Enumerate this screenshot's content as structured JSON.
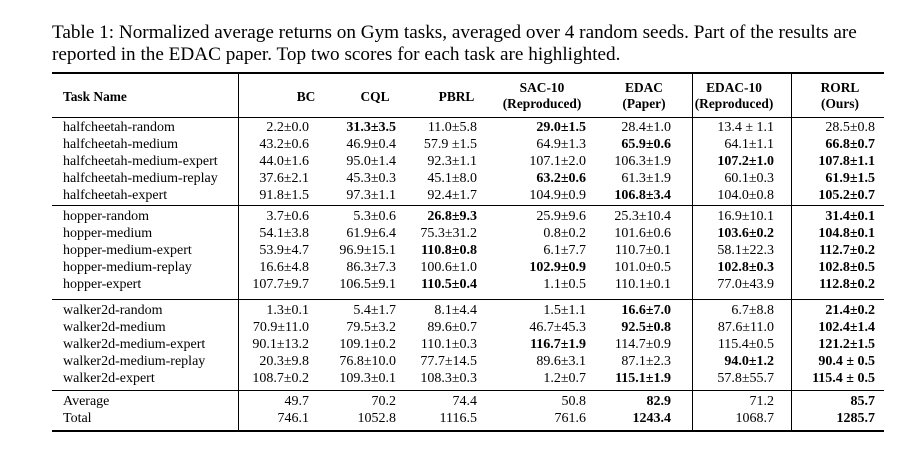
{
  "caption": "Table 1: Normalized average returns on Gym tasks, averaged over 4 random seeds. Part of the results are reported in the EDAC paper. Top two scores for each task are highlighted.",
  "headers": {
    "task": "Task Name",
    "bc": "BC",
    "cql": "CQL",
    "pbrl": "PBRL",
    "sac10_l1": "SAC-10",
    "sac10_l2": "(Reproduced)",
    "edac_l1": "EDAC",
    "edac_l2": "(Paper)",
    "edac10_l1": "EDAC-10",
    "edac10_l2": "(Reproduced)",
    "rorl_l1": "RORL",
    "rorl_l2": "(Ours)"
  },
  "groups": [
    {
      "rows": [
        {
          "task": "halfcheetah-random",
          "bc": "2.2±0.0",
          "cql": "31.3±3.5",
          "pbrl": "11.0±5.8",
          "sac10": "29.0±1.5",
          "edac": "28.4±1.0",
          "edac10": "13.4 ± 1.1",
          "rorl": "28.5±0.8",
          "bold": [
            "cql",
            "sac10"
          ]
        },
        {
          "task": "halfcheetah-medium",
          "bc": "43.2±0.6",
          "cql": "46.9±0.4",
          "pbrl": "57.9 ±1.5",
          "sac10": "64.9±1.3",
          "edac": "65.9±0.6",
          "edac10": "64.1±1.1",
          "rorl": "66.8±0.7",
          "bold": [
            "edac",
            "rorl"
          ]
        },
        {
          "task": "halfcheetah-medium-expert",
          "bc": "44.0±1.6",
          "cql": "95.0±1.4",
          "pbrl": "92.3±1.1",
          "sac10": "107.1±2.0",
          "edac": "106.3±1.9",
          "edac10": "107.2±1.0",
          "rorl": "107.8±1.1",
          "bold": [
            "edac10",
            "rorl"
          ]
        },
        {
          "task": "halfcheetah-medium-replay",
          "bc": "37.6±2.1",
          "cql": "45.3±0.3",
          "pbrl": "45.1±8.0",
          "sac10": "63.2±0.6",
          "edac": "61.3±1.9",
          "edac10": "60.1±0.3",
          "rorl": "61.9±1.5",
          "bold": [
            "sac10",
            "rorl"
          ]
        },
        {
          "task": "halfcheetah-expert",
          "bc": "91.8±1.5",
          "cql": "97.3±1.1",
          "pbrl": "92.4±1.7",
          "sac10": "104.9±0.9",
          "edac": "106.8±3.4",
          "edac10": "104.0±0.8",
          "rorl": "105.2±0.7",
          "bold": [
            "edac",
            "rorl"
          ]
        }
      ]
    },
    {
      "rows": [
        {
          "task": "hopper-random",
          "bc": "3.7±0.6",
          "cql": "5.3±0.6",
          "pbrl": "26.8±9.3",
          "sac10": "25.9±9.6",
          "edac": "25.3±10.4",
          "edac10": "16.9±10.1",
          "rorl": "31.4±0.1",
          "bold": [
            "pbrl",
            "rorl"
          ]
        },
        {
          "task": "hopper-medium",
          "bc": "54.1±3.8",
          "cql": "61.9±6.4",
          "pbrl": "75.3±31.2",
          "sac10": "0.8±0.2",
          "edac": "101.6±0.6",
          "edac10": "103.6±0.2",
          "rorl": "104.8±0.1",
          "bold": [
            "edac10",
            "rorl"
          ]
        },
        {
          "task": "hopper-medium-expert",
          "bc": "53.9±4.7",
          "cql": "96.9±15.1",
          "pbrl": "110.8±0.8",
          "sac10": "6.1±7.7",
          "edac": "110.7±0.1",
          "edac10": "58.1±22.3",
          "rorl": "112.7±0.2",
          "bold": [
            "pbrl",
            "rorl"
          ]
        },
        {
          "task": "hopper-medium-replay",
          "bc": "16.6±4.8",
          "cql": "86.3±7.3",
          "pbrl": "100.6±1.0",
          "sac10": "102.9±0.9",
          "edac": "101.0±0.5",
          "edac10": "102.8±0.3",
          "rorl": "102.8±0.5",
          "bold": [
            "sac10",
            "edac10",
            "rorl"
          ]
        },
        {
          "task": "hopper-expert",
          "bc": "107.7±9.7",
          "cql": "106.5±9.1",
          "pbrl": "110.5±0.4",
          "sac10": "1.1±0.5",
          "edac": "110.1±0.1",
          "edac10": "77.0±43.9",
          "rorl": "112.8±0.2",
          "bold": [
            "pbrl",
            "rorl"
          ]
        }
      ]
    },
    {
      "rows": [
        {
          "task": "walker2d-random",
          "bc": "1.3±0.1",
          "cql": "5.4±1.7",
          "pbrl": "8.1±4.4",
          "sac10": "1.5±1.1",
          "edac": "16.6±7.0",
          "edac10": "6.7±8.8",
          "rorl": "21.4±0.2",
          "bold": [
            "edac",
            "rorl"
          ]
        },
        {
          "task": "walker2d-medium",
          "bc": "70.9±11.0",
          "cql": "79.5±3.2",
          "pbrl": "89.6±0.7",
          "sac10": "46.7±45.3",
          "edac": "92.5±0.8",
          "edac10": "87.6±11.0",
          "rorl": "102.4±1.4",
          "bold": [
            "edac",
            "rorl"
          ]
        },
        {
          "task": "walker2d-medium-expert",
          "bc": "90.1±13.2",
          "cql": "109.1±0.2",
          "pbrl": "110.1±0.3",
          "sac10": "116.7±1.9",
          "edac": "114.7±0.9",
          "edac10": "115.4±0.5",
          "rorl": "121.2±1.5",
          "bold": [
            "sac10",
            "rorl"
          ]
        },
        {
          "task": "walker2d-medium-replay",
          "bc": "20.3±9.8",
          "cql": "76.8±10.0",
          "pbrl": "77.7±14.5",
          "sac10": "89.6±3.1",
          "edac": "87.1±2.3",
          "edac10": "94.0±1.2",
          "rorl": "90.4 ± 0.5",
          "bold": [
            "edac10",
            "rorl"
          ]
        },
        {
          "task": "walker2d-expert",
          "bc": "108.7±0.2",
          "cql": "109.3±0.1",
          "pbrl": "108.3±0.3",
          "sac10": "1.2±0.7",
          "edac": "115.1±1.9",
          "edac10": "57.8±55.7",
          "rorl": "115.4 ± 0.5",
          "bold": [
            "edac",
            "rorl"
          ]
        }
      ]
    },
    {
      "rows": [
        {
          "task": "Average",
          "bc": "49.7",
          "cql": "70.2",
          "pbrl": "74.4",
          "sac10": "50.8",
          "edac": "82.9",
          "edac10": "71.2",
          "rorl": "85.7",
          "bold": [
            "edac",
            "rorl"
          ]
        },
        {
          "task": "Total",
          "bc": "746.1",
          "cql": "1052.8",
          "pbrl": "1116.5",
          "sac10": "761.6",
          "edac": "1243.4",
          "edac10": "1068.7",
          "rorl": "1285.7",
          "bold": [
            "edac",
            "rorl"
          ]
        }
      ]
    }
  ]
}
